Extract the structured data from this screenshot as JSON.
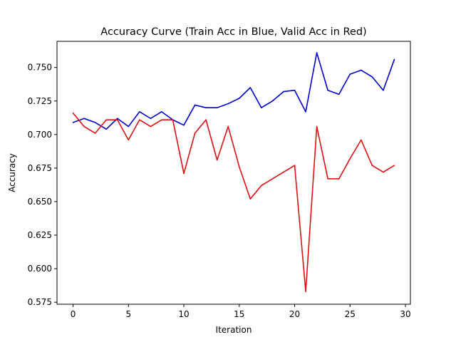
{
  "chart_data": {
    "type": "line",
    "title": "Accuracy Curve (Train Acc in Blue, Valid Acc in Red)",
    "xlabel": "Iteration",
    "ylabel": "Accuracy",
    "xlim": [
      -1.45,
      30.45
    ],
    "ylim": [
      0.5735,
      0.7695
    ],
    "x_ticks": [
      0,
      5,
      10,
      15,
      20,
      25,
      30
    ],
    "y_ticks": [
      0.575,
      0.6,
      0.625,
      0.65,
      0.675,
      0.7,
      0.725,
      0.75
    ],
    "x": [
      0,
      1,
      2,
      3,
      4,
      5,
      6,
      7,
      8,
      9,
      10,
      11,
      12,
      13,
      14,
      15,
      16,
      17,
      18,
      19,
      20,
      21,
      22,
      23,
      24,
      25,
      26,
      27,
      28,
      29
    ],
    "grid": false,
    "legend": "none",
    "series": [
      {
        "color": "#0000cc",
        "values": [
          0.709,
          0.712,
          0.709,
          0.704,
          0.712,
          0.706,
          0.717,
          0.712,
          0.717,
          0.711,
          0.707,
          0.722,
          0.72,
          0.72,
          0.723,
          0.727,
          0.735,
          0.72,
          0.725,
          0.732,
          0.733,
          0.717,
          0.761,
          0.733,
          0.73,
          0.745,
          0.748,
          0.743,
          0.733,
          0.756
        ]
      },
      {
        "color": "#dd1111",
        "values": [
          0.716,
          0.706,
          0.701,
          0.711,
          0.711,
          0.696,
          0.711,
          0.706,
          0.711,
          0.711,
          0.671,
          0.701,
          0.711,
          0.681,
          0.706,
          0.676,
          0.652,
          0.662,
          0.667,
          0.672,
          0.677,
          0.583,
          0.706,
          0.667,
          0.667,
          0.682,
          0.696,
          0.677,
          0.672,
          0.677
        ]
      }
    ]
  }
}
